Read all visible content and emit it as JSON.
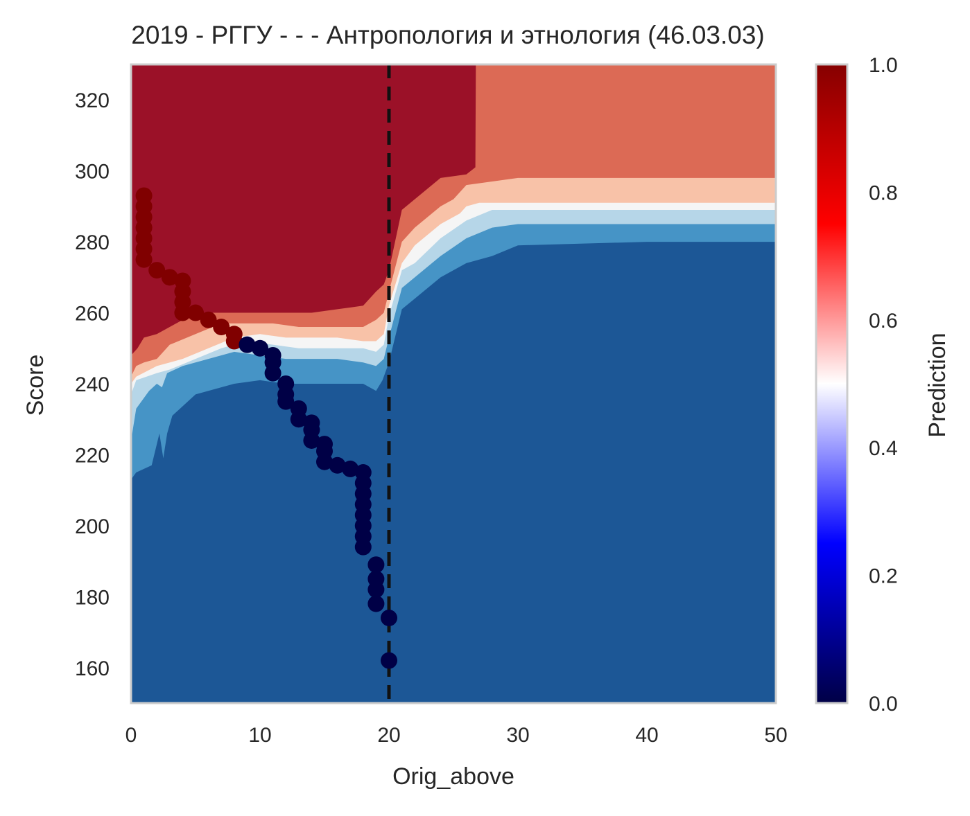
{
  "chart_data": {
    "type": "heatmap",
    "title": "2019 - РГГУ - - - Антропология и этнология (46.03.03)",
    "xlabel": "Orig_above",
    "ylabel": "Score",
    "xlim": [
      0,
      50
    ],
    "ylim": [
      150,
      330
    ],
    "x_ticks": [
      "0",
      "10",
      "20",
      "30",
      "40",
      "50"
    ],
    "y_ticks": [
      "160",
      "180",
      "200",
      "220",
      "240",
      "260",
      "280",
      "300",
      "320"
    ],
    "grid": false,
    "threshold_line": {
      "x": 20,
      "style": "dashed",
      "color": "#111111"
    },
    "colorbar": {
      "label": "Prediction",
      "range": [
        0,
        1
      ],
      "ticks": [
        "0.0",
        "0.2",
        "0.4",
        "0.6",
        "0.8",
        "1.0"
      ],
      "colormap": "seismic"
    },
    "contour_levels": [
      {
        "level": "0.0-0.15",
        "color": "#1c5796"
      },
      {
        "level": "0.15-0.3",
        "color": "#4694c6"
      },
      {
        "level": "0.3-0.45",
        "color": "#b6d6e8"
      },
      {
        "level": "0.45-0.55",
        "color": "#f5f5f5"
      },
      {
        "level": "0.55-0.7",
        "color": "#f8c2a8"
      },
      {
        "level": "0.7-0.85",
        "color": "#dc6a55"
      },
      {
        "level": "0.85-1.0",
        "color": "#9b1128"
      }
    ],
    "series": [
      {
        "points": [
          {
            "x": 1,
            "y": 293,
            "p": 1
          },
          {
            "x": 1,
            "y": 290,
            "p": 1
          },
          {
            "x": 1,
            "y": 287,
            "p": 1
          },
          {
            "x": 1,
            "y": 284,
            "p": 1
          },
          {
            "x": 1,
            "y": 281,
            "p": 1
          },
          {
            "x": 1,
            "y": 278,
            "p": 1
          },
          {
            "x": 1,
            "y": 275,
            "p": 1
          },
          {
            "x": 2,
            "y": 272,
            "p": 1
          },
          {
            "x": 3,
            "y": 270,
            "p": 1
          },
          {
            "x": 4,
            "y": 269,
            "p": 1
          },
          {
            "x": 4,
            "y": 266,
            "p": 1
          },
          {
            "x": 4,
            "y": 263,
            "p": 1
          },
          {
            "x": 4,
            "y": 260,
            "p": 1
          },
          {
            "x": 5,
            "y": 260,
            "p": 1
          },
          {
            "x": 6,
            "y": 258,
            "p": 1
          },
          {
            "x": 7,
            "y": 256,
            "p": 1
          },
          {
            "x": 8,
            "y": 254,
            "p": 1
          },
          {
            "x": 8,
            "y": 252,
            "p": 1
          },
          {
            "x": 9,
            "y": 251,
            "p": 0
          },
          {
            "x": 10,
            "y": 250,
            "p": 0
          },
          {
            "x": 11,
            "y": 248,
            "p": 0
          },
          {
            "x": 11,
            "y": 246,
            "p": 0
          },
          {
            "x": 11,
            "y": 243,
            "p": 0
          },
          {
            "x": 12,
            "y": 240,
            "p": 0
          },
          {
            "x": 12,
            "y": 237,
            "p": 0
          },
          {
            "x": 12,
            "y": 235,
            "p": 0
          },
          {
            "x": 13,
            "y": 233,
            "p": 0
          },
          {
            "x": 13,
            "y": 230,
            "p": 0
          },
          {
            "x": 14,
            "y": 229,
            "p": 0
          },
          {
            "x": 14,
            "y": 227,
            "p": 0
          },
          {
            "x": 14,
            "y": 224,
            "p": 0
          },
          {
            "x": 15,
            "y": 223,
            "p": 0
          },
          {
            "x": 15,
            "y": 221,
            "p": 0
          },
          {
            "x": 15,
            "y": 218,
            "p": 0
          },
          {
            "x": 16,
            "y": 217,
            "p": 0
          },
          {
            "x": 17,
            "y": 216,
            "p": 0
          },
          {
            "x": 18,
            "y": 215,
            "p": 0
          },
          {
            "x": 18,
            "y": 212,
            "p": 0
          },
          {
            "x": 18,
            "y": 209,
            "p": 0
          },
          {
            "x": 18,
            "y": 206,
            "p": 0
          },
          {
            "x": 18,
            "y": 203,
            "p": 0
          },
          {
            "x": 18,
            "y": 200,
            "p": 0
          },
          {
            "x": 18,
            "y": 197,
            "p": 0
          },
          {
            "x": 18,
            "y": 194,
            "p": 0
          },
          {
            "x": 19,
            "y": 189,
            "p": 0
          },
          {
            "x": 19,
            "y": 185,
            "p": 0
          },
          {
            "x": 19,
            "y": 182,
            "p": 0
          },
          {
            "x": 19,
            "y": 178,
            "p": 0
          },
          {
            "x": 20,
            "y": 174,
            "p": 0
          },
          {
            "x": 20,
            "y": 162,
            "p": 0
          }
        ]
      }
    ]
  }
}
